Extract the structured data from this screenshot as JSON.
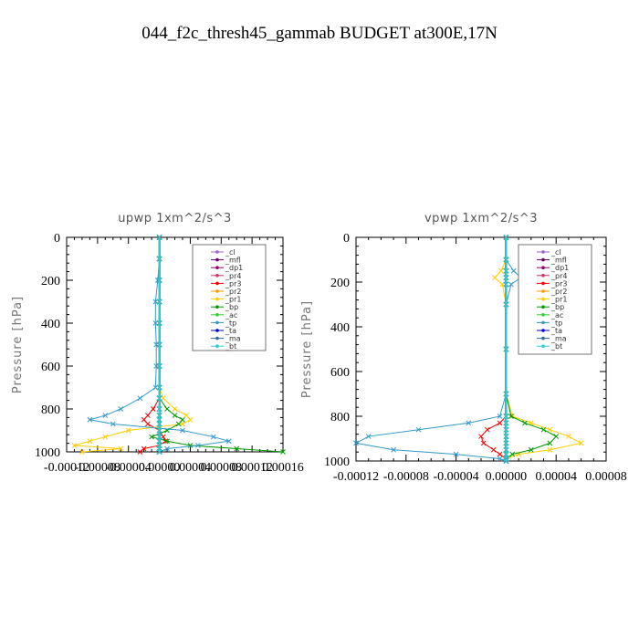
{
  "figure": {
    "title": "044_f2c_thresh45_gammab  BUDGET at300E,17N"
  },
  "chart_data": [
    {
      "type": "line",
      "title": "upwp   1xm^2/s^3",
      "ylabel": "Pressure [hPa]",
      "xlabel": "",
      "xlim": [
        -0.00012,
        0.00016
      ],
      "ylim": [
        1000,
        0
      ],
      "xticks": [
        -0.00012,
        -8e-05,
        -4e-05,
        0.0,
        4e-05,
        8e-05,
        0.00012,
        0.00016
      ],
      "xtick_labels": [
        "-0.00012",
        "-0.00008",
        "-0.00004",
        "0.00000",
        "0.00004",
        "0.00008",
        "0.00012",
        "0.00016"
      ],
      "yticks": [
        0,
        200,
        400,
        600,
        800,
        1000
      ],
      "ytick_labels": [
        "0",
        "200",
        "400",
        "600",
        "800",
        "1000"
      ],
      "legend_position": "top-right",
      "y": [
        0,
        100,
        200,
        300,
        400,
        500,
        600,
        700,
        750,
        800,
        830,
        850,
        870,
        900,
        930,
        950,
        970,
        985,
        1000
      ],
      "series": [
        {
          "name": "_cl",
          "color": "#9966cc",
          "marker": "x",
          "values": [
            0,
            0,
            0,
            0,
            0,
            0,
            0,
            0,
            0,
            0,
            0,
            0,
            0,
            0,
            0,
            0,
            0,
            0,
            0
          ]
        },
        {
          "name": "_mfl",
          "color": "#660066",
          "marker": "x",
          "values": [
            0,
            0,
            0,
            0,
            0,
            0,
            0,
            0,
            0,
            0,
            0,
            0,
            0,
            0,
            0,
            0,
            0,
            0,
            0
          ]
        },
        {
          "name": "_dp1",
          "color": "#990066",
          "marker": "x",
          "values": [
            0,
            0,
            0,
            0,
            0,
            0,
            0,
            0,
            0,
            0,
            0,
            0,
            0,
            0,
            0,
            0,
            0,
            0,
            0
          ]
        },
        {
          "name": "_pr4",
          "color": "#cc3366",
          "marker": "x",
          "values": [
            0,
            0,
            0,
            0,
            0,
            0,
            0,
            0,
            0,
            0,
            0,
            0,
            0,
            0,
            0,
            0,
            0,
            0,
            0
          ]
        },
        {
          "name": "_pr3",
          "color": "#ff0000",
          "marker": "x",
          "values": [
            0,
            0,
            0,
            0,
            0,
            0,
            0,
            0,
            0,
            -8e-06,
            -1.5e-05,
            -2e-05,
            -1.5e-05,
            0,
            5e-06,
            8e-06,
            0,
            -2e-05,
            -2.5e-05
          ]
        },
        {
          "name": "_pr2",
          "color": "#ff9900",
          "marker": "x",
          "values": [
            0,
            0,
            0,
            0,
            0,
            0,
            0,
            0,
            0,
            0,
            0,
            0,
            0,
            0,
            0,
            0,
            0,
            0,
            0
          ]
        },
        {
          "name": "_pr1",
          "color": "#ffcc00",
          "marker": "x",
          "values": [
            0,
            0,
            0,
            0,
            0,
            0,
            0,
            0,
            5e-06,
            2e-05,
            3.5e-05,
            4e-05,
            3e-05,
            -4e-05,
            -7e-05,
            -9e-05,
            -0.00011,
            -5e-05,
            -0.0001
          ]
        },
        {
          "name": "_bp",
          "color": "#009900",
          "marker": "x",
          "values": [
            0,
            0,
            0,
            0,
            0,
            0,
            0,
            0,
            0,
            1e-05,
            2e-05,
            3e-05,
            2.5e-05,
            1e-05,
            -1e-05,
            1e-05,
            4e-05,
            0.0001,
            0.00016
          ]
        },
        {
          "name": "_ac",
          "color": "#33cc33",
          "marker": "x",
          "values": [
            0,
            0,
            0,
            0,
            0,
            0,
            0,
            0,
            0,
            0,
            0,
            0,
            0,
            0,
            0,
            0,
            0,
            0,
            0
          ]
        },
        {
          "name": "_tp",
          "color": "#3399cc",
          "marker": "x",
          "values": [
            0,
            0,
            -2e-06,
            -5e-06,
            -5e-06,
            -4e-06,
            -4e-06,
            -5e-06,
            -2.5e-05,
            -5e-05,
            -7e-05,
            -9e-05,
            -6e-05,
            3e-05,
            7e-05,
            9e-05,
            5e-05,
            1e-05,
            0
          ]
        },
        {
          "name": "_ta",
          "color": "#0000cc",
          "marker": "x",
          "values": [
            0,
            0,
            0,
            0,
            0,
            0,
            0,
            0,
            0,
            0,
            0,
            0,
            0,
            0,
            0,
            0,
            0,
            0,
            0
          ]
        },
        {
          "name": "_ma",
          "color": "#336699",
          "marker": "none",
          "values": [
            0,
            0,
            0,
            0,
            0,
            0,
            0,
            0,
            0,
            0,
            0,
            0,
            0,
            0,
            0,
            0,
            0,
            0,
            0
          ]
        },
        {
          "name": "_bt",
          "color": "#33cccc",
          "marker": "x",
          "values": [
            0,
            0,
            0,
            0,
            0,
            0,
            0,
            0,
            0,
            0,
            0,
            0,
            0,
            0,
            0,
            0,
            0,
            0,
            0
          ]
        }
      ]
    },
    {
      "type": "line",
      "title": "vpwp   1xm^2/s^3",
      "ylabel": "Pressure [hPa]",
      "xlabel": "",
      "xlim": [
        -0.00012,
        8e-05
      ],
      "ylim": [
        1000,
        0
      ],
      "xticks": [
        -0.00012,
        -8e-05,
        -4e-05,
        0.0,
        4e-05,
        8e-05
      ],
      "xtick_labels": [
        "-0.00012",
        "-0.00008",
        "-0.00004",
        "0.00000",
        "0.00004",
        "0.00008"
      ],
      "yticks": [
        0,
        200,
        400,
        600,
        800,
        1000
      ],
      "ytick_labels": [
        "0",
        "200",
        "400",
        "600",
        "800",
        "1000"
      ],
      "legend_position": "top-right",
      "y": [
        0,
        100,
        150,
        180,
        210,
        300,
        500,
        700,
        800,
        830,
        860,
        890,
        920,
        950,
        970,
        990,
        1000
      ],
      "series": [
        {
          "name": "_cl",
          "color": "#9966cc",
          "marker": "x",
          "values": [
            0,
            0,
            0,
            0,
            0,
            0,
            0,
            0,
            0,
            0,
            0,
            0,
            0,
            0,
            0,
            0,
            0
          ]
        },
        {
          "name": "_mfl",
          "color": "#660066",
          "marker": "x",
          "values": [
            0,
            0,
            0,
            0,
            0,
            0,
            0,
            0,
            0,
            0,
            0,
            0,
            0,
            0,
            0,
            0,
            0
          ]
        },
        {
          "name": "_dp1",
          "color": "#990066",
          "marker": "x",
          "values": [
            0,
            0,
            0,
            0,
            0,
            0,
            0,
            0,
            0,
            0,
            0,
            0,
            0,
            0,
            0,
            0,
            0
          ]
        },
        {
          "name": "_pr4",
          "color": "#cc3366",
          "marker": "x",
          "values": [
            0,
            0,
            0,
            0,
            0,
            0,
            0,
            0,
            0,
            0,
            0,
            0,
            0,
            0,
            0,
            0,
            0
          ]
        },
        {
          "name": "_pr3",
          "color": "#ff0000",
          "marker": "x",
          "values": [
            0,
            0,
            0,
            0,
            0,
            0,
            0,
            0,
            0,
            -5e-06,
            -1.5e-05,
            -2e-05,
            -1.8e-05,
            -1e-05,
            -5e-06,
            0,
            0
          ]
        },
        {
          "name": "_pr2",
          "color": "#ff9900",
          "marker": "x",
          "values": [
            0,
            0,
            0,
            0,
            0,
            0,
            0,
            0,
            0,
            0,
            0,
            0,
            0,
            0,
            0,
            0,
            0
          ]
        },
        {
          "name": "_pr1",
          "color": "#ffcc00",
          "marker": "x",
          "values": [
            0,
            0,
            -4e-06,
            -9e-06,
            -3e-06,
            0,
            0,
            0,
            5e-06,
            2e-05,
            3.5e-05,
            5e-05,
            6e-05,
            3.5e-05,
            1e-05,
            0,
            0
          ]
        },
        {
          "name": "_bp",
          "color": "#009900",
          "marker": "x",
          "values": [
            0,
            0,
            0,
            0,
            0,
            0,
            0,
            0,
            4e-06,
            1.5e-05,
            3e-05,
            4e-05,
            3.5e-05,
            2e-05,
            5e-06,
            0,
            0
          ]
        },
        {
          "name": "_ac",
          "color": "#33cc33",
          "marker": "x",
          "values": [
            0,
            0,
            0,
            0,
            0,
            0,
            0,
            0,
            0,
            0,
            0,
            0,
            0,
            0,
            0,
            0,
            0
          ]
        },
        {
          "name": "_tp",
          "color": "#3399cc",
          "marker": "x",
          "values": [
            0,
            0,
            6e-06,
            1.2e-05,
            4e-06,
            0,
            0,
            0,
            -5e-06,
            -3e-05,
            -7e-05,
            -0.00011,
            -0.00012,
            -9e-05,
            -4e-05,
            -5e-06,
            0
          ]
        },
        {
          "name": "_ta",
          "color": "#0000cc",
          "marker": "x",
          "values": [
            0,
            0,
            0,
            0,
            0,
            0,
            0,
            0,
            0,
            0,
            0,
            0,
            0,
            0,
            0,
            0,
            0
          ]
        },
        {
          "name": "_ma",
          "color": "#336699",
          "marker": "none",
          "values": [
            0,
            0,
            0,
            0,
            0,
            0,
            0,
            0,
            0,
            0,
            0,
            0,
            0,
            0,
            0,
            0,
            0
          ]
        },
        {
          "name": "_bt",
          "color": "#33cccc",
          "marker": "x",
          "values": [
            0,
            0,
            0,
            0,
            0,
            0,
            0,
            0,
            0,
            0,
            0,
            0,
            0,
            0,
            0,
            0,
            0
          ]
        }
      ]
    }
  ]
}
